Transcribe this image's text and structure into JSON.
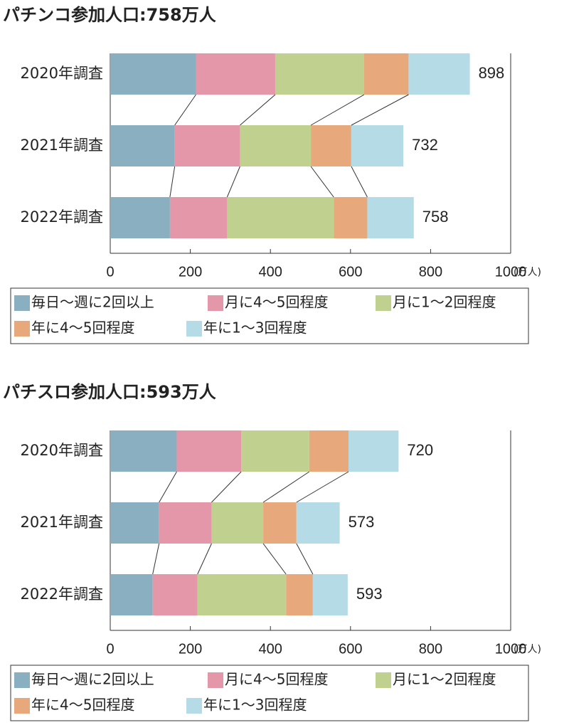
{
  "chart_data": [
    {
      "type": "stacked-bar",
      "title": "パチンコ参加人口:758万人",
      "categories": [
        "2020年調査",
        "2021年調査",
        "2022年調査"
      ],
      "series": [
        {
          "name": "毎日〜週に2回以上",
          "color": "#8aafc0",
          "values": [
            214,
            161,
            149
          ]
        },
        {
          "name": "月に4〜5回程度",
          "color": "#e497a8",
          "values": [
            198,
            163,
            143
          ]
        },
        {
          "name": "月に1〜2回程度",
          "color": "#bfd08f",
          "values": [
            222,
            177,
            266
          ]
        },
        {
          "name": "年に4〜5回程度",
          "color": "#e7a97c",
          "values": [
            111,
            101,
            84
          ]
        },
        {
          "name": "年に1〜3回程度",
          "color": "#b5dce6",
          "values": [
            153,
            130,
            116
          ]
        }
      ],
      "totals": [
        898,
        732,
        758
      ],
      "xlim": [
        0,
        1000
      ],
      "xticks": [
        0,
        200,
        400,
        600,
        800,
        1000
      ],
      "x_unit": "(万人)"
    },
    {
      "type": "stacked-bar",
      "title": "パチスロ参加人口:593万人",
      "categories": [
        "2020年調査",
        "2021年調査",
        "2022年調査"
      ],
      "series": [
        {
          "name": "毎日〜週に2回以上",
          "color": "#8aafc0",
          "values": [
            166,
            122,
            106
          ]
        },
        {
          "name": "月に4〜5回程度",
          "color": "#e497a8",
          "values": [
            161,
            131,
            112
          ]
        },
        {
          "name": "月に1〜2回程度",
          "color": "#bfd08f",
          "values": [
            170,
            129,
            221
          ]
        },
        {
          "name": "年に4〜5回程度",
          "color": "#e7a97c",
          "values": [
            98,
            83,
            67
          ]
        },
        {
          "name": "年に1〜3回程度",
          "color": "#b5dce6",
          "values": [
            125,
            108,
            87
          ]
        }
      ],
      "totals": [
        720,
        573,
        593
      ],
      "xlim": [
        0,
        1000
      ],
      "xticks": [
        0,
        200,
        400,
        600,
        800,
        1000
      ],
      "x_unit": "(万人)"
    }
  ]
}
